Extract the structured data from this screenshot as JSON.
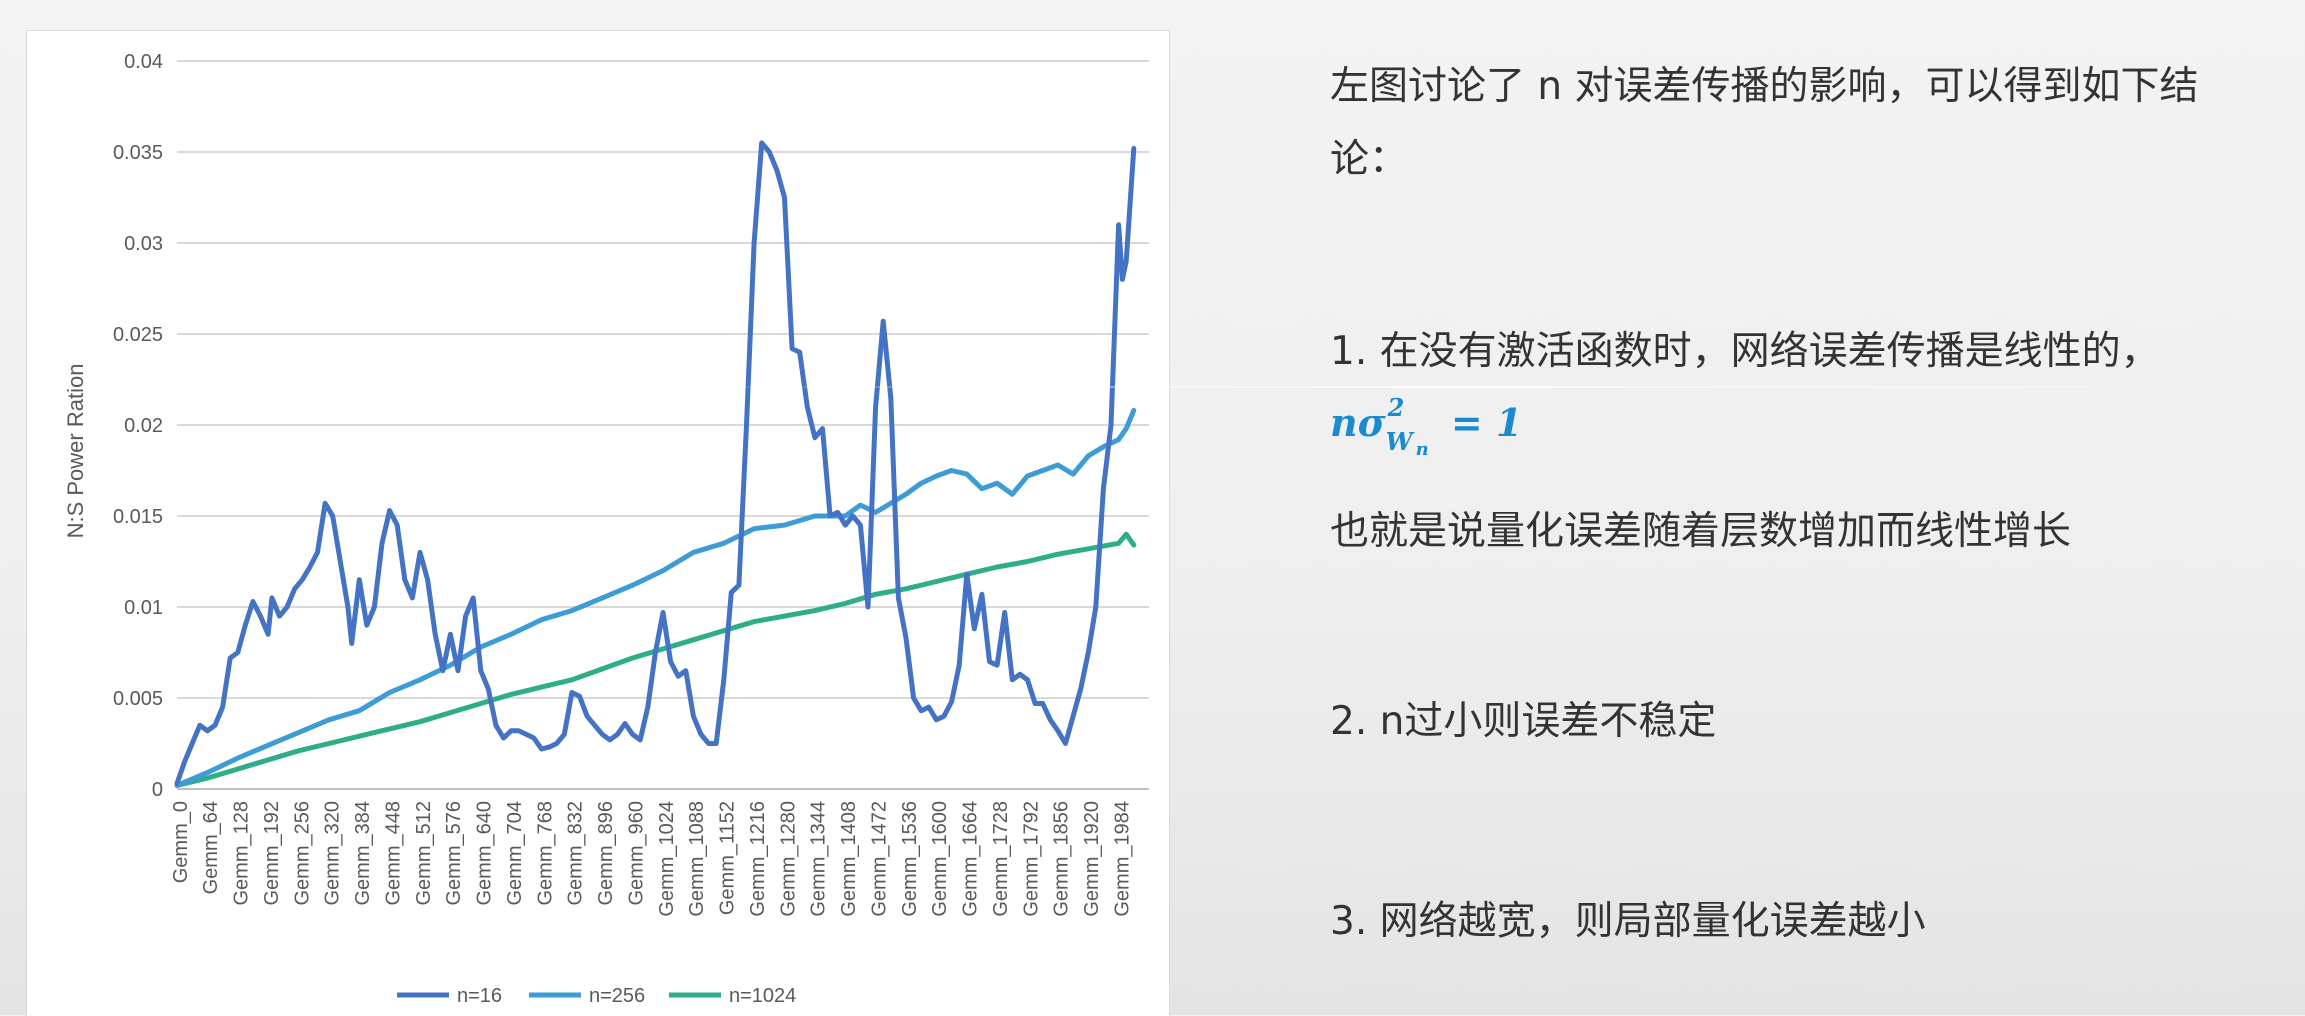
{
  "notes": {
    "intro": "左图讨论了 n 对误差传播的影响，可以得到如下结论：",
    "point1": "1. 在没有激活函数时，网络误差传播是线性的，",
    "formula": {
      "n": "n",
      "sigma": "σ",
      "sup": "2",
      "sub_w": "W",
      "sub_n": "n",
      "eq": " = 1"
    },
    "point1b": "也就是说量化误差随着层数增加而线性增长",
    "point2": "2. n过小则误差不稳定",
    "point3": "3. 网络越宽，则局部量化误差越小"
  },
  "chart_data": {
    "type": "line",
    "ylabel": "N:S Power Ration",
    "xlabel": "",
    "ylim": [
      0,
      0.04
    ],
    "y_ticks": [
      "0",
      "0.005",
      "0.01",
      "0.015",
      "0.02",
      "0.025",
      "0.03",
      "0.035",
      "0.04"
    ],
    "grid": true,
    "legend_position": "bottom",
    "x_tick_labels": [
      "Gemm_0",
      "Gemm_64",
      "Gemm_128",
      "Gemm_192",
      "Gemm_256",
      "Gemm_320",
      "Gemm_384",
      "Gemm_448",
      "Gemm_512",
      "Gemm_576",
      "Gemm_640",
      "Gemm_704",
      "Gemm_768",
      "Gemm_832",
      "Gemm_896",
      "Gemm_960",
      "Gemm_1024",
      "Gemm_1088",
      "Gemm_1152",
      "Gemm_1216",
      "Gemm_1280",
      "Gemm_1344",
      "Gemm_1408",
      "Gemm_1472",
      "Gemm_1536",
      "Gemm_1600",
      "Gemm_1664",
      "Gemm_1728",
      "Gemm_1792",
      "Gemm_1856",
      "Gemm_1920",
      "Gemm_1984"
    ],
    "x_range": [
      0,
      2048
    ],
    "series": [
      {
        "name": "n=16",
        "color": "#4472c4",
        "points": [
          [
            0,
            0.0003
          ],
          [
            16,
            0.0015
          ],
          [
            32,
            0.0025
          ],
          [
            48,
            0.0035
          ],
          [
            64,
            0.0032
          ],
          [
            80,
            0.0035
          ],
          [
            96,
            0.0045
          ],
          [
            112,
            0.0072
          ],
          [
            128,
            0.0075
          ],
          [
            144,
            0.009
          ],
          [
            160,
            0.0103
          ],
          [
            176,
            0.0095
          ],
          [
            192,
            0.0085
          ],
          [
            200,
            0.0105
          ],
          [
            216,
            0.0095
          ],
          [
            232,
            0.01
          ],
          [
            248,
            0.011
          ],
          [
            264,
            0.0115
          ],
          [
            280,
            0.0122
          ],
          [
            296,
            0.013
          ],
          [
            312,
            0.0157
          ],
          [
            328,
            0.015
          ],
          [
            344,
            0.0125
          ],
          [
            360,
            0.01
          ],
          [
            368,
            0.008
          ],
          [
            384,
            0.0115
          ],
          [
            400,
            0.009
          ],
          [
            416,
            0.01
          ],
          [
            432,
            0.0135
          ],
          [
            448,
            0.0153
          ],
          [
            464,
            0.0145
          ],
          [
            480,
            0.0115
          ],
          [
            496,
            0.0105
          ],
          [
            512,
            0.013
          ],
          [
            528,
            0.0115
          ],
          [
            544,
            0.0085
          ],
          [
            560,
            0.0065
          ],
          [
            576,
            0.0085
          ],
          [
            592,
            0.0065
          ],
          [
            608,
            0.0095
          ],
          [
            624,
            0.0105
          ],
          [
            640,
            0.0065
          ],
          [
            656,
            0.0055
          ],
          [
            672,
            0.0035
          ],
          [
            688,
            0.0028
          ],
          [
            704,
            0.0032
          ],
          [
            720,
            0.0032
          ],
          [
            736,
            0.003
          ],
          [
            752,
            0.0028
          ],
          [
            768,
            0.0022
          ],
          [
            784,
            0.0023
          ],
          [
            800,
            0.0025
          ],
          [
            816,
            0.003
          ],
          [
            832,
            0.0053
          ],
          [
            848,
            0.0051
          ],
          [
            864,
            0.004
          ],
          [
            880,
            0.0035
          ],
          [
            896,
            0.003
          ],
          [
            912,
            0.0027
          ],
          [
            928,
            0.003
          ],
          [
            944,
            0.0036
          ],
          [
            960,
            0.003
          ],
          [
            976,
            0.0027
          ],
          [
            992,
            0.0045
          ],
          [
            1008,
            0.0075
          ],
          [
            1024,
            0.0097
          ],
          [
            1040,
            0.007
          ],
          [
            1056,
            0.0062
          ],
          [
            1072,
            0.0065
          ],
          [
            1088,
            0.004
          ],
          [
            1104,
            0.003
          ],
          [
            1120,
            0.0025
          ],
          [
            1136,
            0.0025
          ],
          [
            1152,
            0.006
          ],
          [
            1168,
            0.0108
          ],
          [
            1184,
            0.0112
          ],
          [
            1200,
            0.02
          ],
          [
            1216,
            0.03
          ],
          [
            1232,
            0.0355
          ],
          [
            1248,
            0.035
          ],
          [
            1264,
            0.034
          ],
          [
            1280,
            0.0325
          ],
          [
            1296,
            0.0242
          ],
          [
            1312,
            0.024
          ],
          [
            1328,
            0.021
          ],
          [
            1344,
            0.0193
          ],
          [
            1360,
            0.0198
          ],
          [
            1376,
            0.015
          ],
          [
            1392,
            0.0152
          ],
          [
            1408,
            0.0145
          ],
          [
            1424,
            0.015
          ],
          [
            1440,
            0.0145
          ],
          [
            1456,
            0.01
          ],
          [
            1472,
            0.021
          ],
          [
            1488,
            0.0257
          ],
          [
            1504,
            0.0215
          ],
          [
            1520,
            0.0105
          ],
          [
            1536,
            0.0083
          ],
          [
            1552,
            0.005
          ],
          [
            1568,
            0.0043
          ],
          [
            1584,
            0.0045
          ],
          [
            1600,
            0.0038
          ],
          [
            1616,
            0.004
          ],
          [
            1632,
            0.0048
          ],
          [
            1648,
            0.0068
          ],
          [
            1664,
            0.0118
          ],
          [
            1680,
            0.0088
          ],
          [
            1696,
            0.0107
          ],
          [
            1712,
            0.007
          ],
          [
            1728,
            0.0068
          ],
          [
            1744,
            0.0097
          ],
          [
            1760,
            0.006
          ],
          [
            1776,
            0.0063
          ],
          [
            1792,
            0.006
          ],
          [
            1808,
            0.0047
          ],
          [
            1824,
            0.0047
          ],
          [
            1840,
            0.0038
          ],
          [
            1856,
            0.0032
          ],
          [
            1872,
            0.0025
          ],
          [
            1888,
            0.004
          ],
          [
            1904,
            0.0055
          ],
          [
            1920,
            0.0075
          ],
          [
            1936,
            0.01
          ],
          [
            1952,
            0.0165
          ],
          [
            1968,
            0.02
          ],
          [
            1984,
            0.031
          ],
          [
            1992,
            0.028
          ],
          [
            2000,
            0.029
          ],
          [
            2016,
            0.0352
          ]
        ]
      },
      {
        "name": "n=256",
        "color": "#3d9bd6",
        "points": [
          [
            0,
            0.0002
          ],
          [
            64,
            0.0009
          ],
          [
            128,
            0.0017
          ],
          [
            192,
            0.0024
          ],
          [
            256,
            0.0031
          ],
          [
            320,
            0.0038
          ],
          [
            384,
            0.0043
          ],
          [
            448,
            0.0053
          ],
          [
            512,
            0.006
          ],
          [
            576,
            0.0068
          ],
          [
            640,
            0.0078
          ],
          [
            704,
            0.0085
          ],
          [
            768,
            0.0093
          ],
          [
            832,
            0.0098
          ],
          [
            896,
            0.0105
          ],
          [
            960,
            0.0112
          ],
          [
            1024,
            0.012
          ],
          [
            1088,
            0.013
          ],
          [
            1152,
            0.0135
          ],
          [
            1216,
            0.0143
          ],
          [
            1280,
            0.0145
          ],
          [
            1344,
            0.015
          ],
          [
            1408,
            0.015
          ],
          [
            1440,
            0.0156
          ],
          [
            1472,
            0.0152
          ],
          [
            1536,
            0.0162
          ],
          [
            1568,
            0.0168
          ],
          [
            1600,
            0.0172
          ],
          [
            1632,
            0.0175
          ],
          [
            1664,
            0.0173
          ],
          [
            1696,
            0.0165
          ],
          [
            1728,
            0.0168
          ],
          [
            1760,
            0.0162
          ],
          [
            1792,
            0.0172
          ],
          [
            1824,
            0.0175
          ],
          [
            1856,
            0.0178
          ],
          [
            1888,
            0.0173
          ],
          [
            1920,
            0.0183
          ],
          [
            1952,
            0.0188
          ],
          [
            1984,
            0.0192
          ],
          [
            2000,
            0.0198
          ],
          [
            2016,
            0.0208
          ]
        ]
      },
      {
        "name": "n=1024",
        "color": "#2eae88",
        "points": [
          [
            0,
            0.0002
          ],
          [
            64,
            0.0006
          ],
          [
            128,
            0.0011
          ],
          [
            192,
            0.0016
          ],
          [
            256,
            0.0021
          ],
          [
            320,
            0.0025
          ],
          [
            384,
            0.0029
          ],
          [
            448,
            0.0033
          ],
          [
            512,
            0.0037
          ],
          [
            576,
            0.0042
          ],
          [
            640,
            0.0047
          ],
          [
            704,
            0.0052
          ],
          [
            768,
            0.0056
          ],
          [
            832,
            0.006
          ],
          [
            896,
            0.0066
          ],
          [
            960,
            0.0072
          ],
          [
            1024,
            0.0077
          ],
          [
            1088,
            0.0082
          ],
          [
            1152,
            0.0087
          ],
          [
            1216,
            0.0092
          ],
          [
            1280,
            0.0095
          ],
          [
            1344,
            0.0098
          ],
          [
            1408,
            0.0102
          ],
          [
            1472,
            0.0107
          ],
          [
            1536,
            0.011
          ],
          [
            1600,
            0.0114
          ],
          [
            1664,
            0.0118
          ],
          [
            1728,
            0.0122
          ],
          [
            1792,
            0.0125
          ],
          [
            1856,
            0.0129
          ],
          [
            1920,
            0.0132
          ],
          [
            1984,
            0.0135
          ],
          [
            2000,
            0.014
          ],
          [
            2016,
            0.0134
          ]
        ]
      }
    ]
  }
}
